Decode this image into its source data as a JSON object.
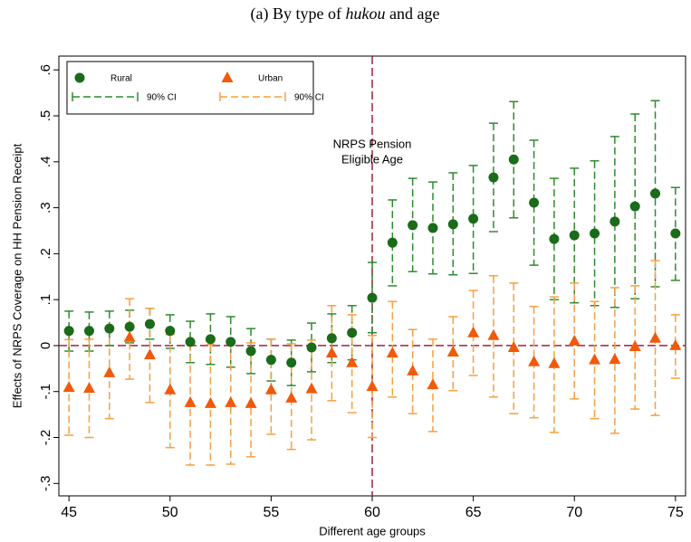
{
  "chart_data": {
    "type": "scatter",
    "title": [
      "(a)",
      "By",
      "type",
      "of",
      "hukou",
      "and",
      "age"
    ],
    "title_italic_word": "hukou",
    "x_label": "Different age groups",
    "y_label": "Effects of NRPS Coverage on HH Pension Receipt",
    "annotation": [
      "NRPS Pension",
      "Eligible Age"
    ],
    "reference_lines": {
      "x": 60,
      "y": 0,
      "color": "#a0203c"
    },
    "x": [
      45,
      46,
      47,
      48,
      49,
      50,
      51,
      52,
      53,
      54,
      55,
      56,
      57,
      58,
      59,
      60,
      61,
      62,
      63,
      64,
      65,
      66,
      67,
      68,
      69,
      70,
      71,
      72,
      73,
      74,
      75
    ],
    "series": [
      {
        "name": "Rural",
        "ci_name": "90% CI",
        "marker": "circle",
        "color": "#1a6b1a",
        "ci_color": "#2e8b2e",
        "values": [
          0.032,
          0.032,
          0.037,
          0.041,
          0.047,
          0.032,
          0.008,
          0.014,
          0.008,
          -0.012,
          -0.031,
          -0.037,
          -0.004,
          0.016,
          0.028,
          0.104,
          0.224,
          0.262,
          0.256,
          0.264,
          0.276,
          0.366,
          0.405,
          0.311,
          0.232,
          0.24,
          0.244,
          0.27,
          0.303,
          0.331,
          0.244
        ],
        "ci_upper": [
          0.075,
          0.073,
          0.075,
          0.077,
          0.081,
          0.067,
          0.053,
          0.069,
          0.063,
          0.037,
          0.014,
          0.012,
          0.049,
          0.069,
          0.087,
          0.181,
          0.317,
          0.364,
          0.356,
          0.376,
          0.392,
          0.484,
          0.531,
          0.447,
          0.364,
          0.386,
          0.402,
          0.455,
          0.504,
          0.533,
          0.344
        ],
        "ci_lower": [
          -0.012,
          -0.012,
          0.0,
          0.006,
          0.014,
          -0.006,
          -0.037,
          -0.041,
          -0.047,
          -0.061,
          -0.077,
          -0.087,
          -0.057,
          -0.037,
          -0.031,
          0.028,
          0.13,
          0.161,
          0.156,
          0.154,
          0.157,
          0.248,
          0.278,
          0.175,
          0.1,
          0.093,
          0.087,
          0.083,
          0.102,
          0.128,
          0.142
        ]
      },
      {
        "name": "Urban",
        "ci_name": "90% CI",
        "marker": "triangle",
        "color": "#f05a0a",
        "ci_color": "#f5a040",
        "values": [
          -0.091,
          -0.093,
          -0.059,
          0.018,
          -0.02,
          -0.096,
          -0.124,
          -0.126,
          -0.124,
          -0.126,
          -0.096,
          -0.114,
          -0.094,
          -0.016,
          -0.037,
          -0.089,
          -0.016,
          -0.055,
          -0.085,
          -0.014,
          0.028,
          0.022,
          -0.004,
          -0.035,
          -0.039,
          0.01,
          -0.031,
          -0.03,
          -0.002,
          0.016,
          0.0
        ],
        "ci_upper": [
          0.013,
          0.014,
          0.041,
          0.102,
          0.081,
          0.024,
          0.004,
          0.002,
          0.008,
          0.006,
          0.014,
          0.004,
          0.012,
          0.087,
          0.067,
          0.022,
          0.096,
          0.035,
          0.014,
          0.063,
          0.12,
          0.152,
          0.136,
          0.085,
          0.106,
          0.136,
          0.096,
          0.126,
          0.13,
          0.185,
          0.067
        ],
        "ci_lower": [
          -0.195,
          -0.2,
          -0.159,
          -0.073,
          -0.124,
          -0.222,
          -0.26,
          -0.26,
          -0.258,
          -0.242,
          -0.193,
          -0.226,
          -0.205,
          -0.12,
          -0.146,
          -0.2,
          -0.112,
          -0.148,
          -0.187,
          -0.098,
          -0.065,
          -0.112,
          -0.148,
          -0.157,
          -0.189,
          -0.116,
          -0.159,
          -0.191,
          -0.138,
          -0.152,
          -0.071
        ]
      }
    ],
    "xlim": [
      44.5,
      75.5
    ],
    "ylim": [
      -0.327,
      0.63
    ],
    "xticks": [
      45,
      50,
      55,
      60,
      65,
      70,
      75
    ],
    "yticks": [
      {
        "value": -0.3,
        "label": "-.3"
      },
      {
        "value": -0.2,
        "label": "-.2"
      },
      {
        "value": -0.1,
        "label": "-.1"
      },
      0,
      {
        "value": 0.1,
        "label": ".1"
      },
      {
        "value": 0.2,
        "label": ".2"
      },
      {
        "value": 0.3,
        "label": ".3"
      },
      {
        "value": 0.4,
        "label": ".4"
      },
      {
        "value": 0.5,
        "label": ".5"
      },
      {
        "value": 0.6,
        "label": ".6"
      }
    ],
    "legend": "top-left"
  }
}
